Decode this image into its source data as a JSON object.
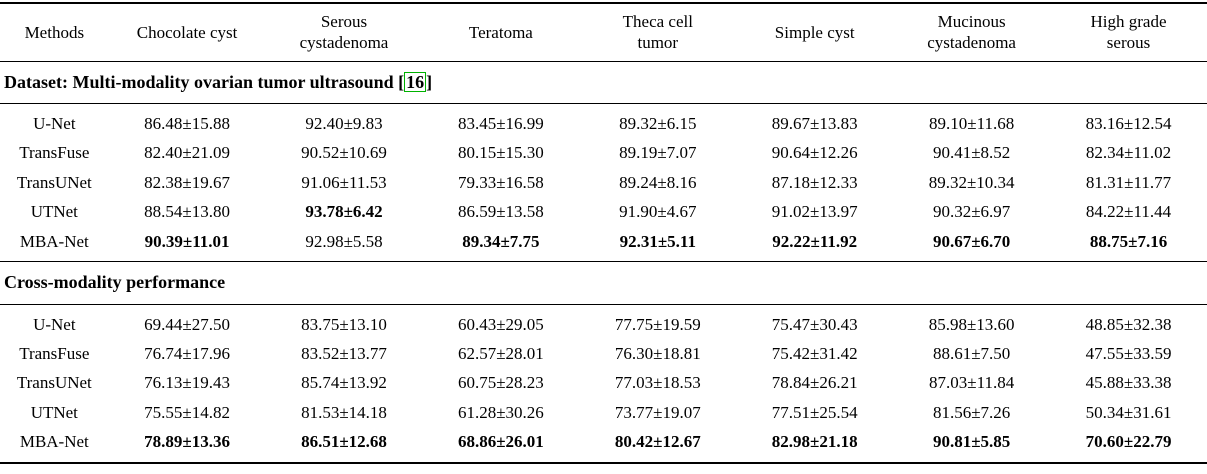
{
  "accent_colors": {
    "citation_border": "#00b200"
  },
  "table": {
    "columns": [
      "Methods",
      "Chocolate cyst",
      "Serous\ncystadenoma",
      "Teratoma",
      "Theca cell\ntumor",
      "Simple cyst",
      "Mucinous\ncystadenoma",
      "High grade\nserous"
    ],
    "sections": [
      {
        "title": "Dataset: Multi-modality ovarian tumor ultrasound",
        "citation_open": "[",
        "citation": "16",
        "citation_close": "]",
        "rows": [
          {
            "method": "U-Net",
            "values": [
              "86.48±15.88",
              "92.40±9.83",
              "83.45±16.99",
              "89.32±6.15",
              "89.67±13.83",
              "89.10±11.68",
              "83.16±12.54"
            ],
            "bold": [
              false,
              false,
              false,
              false,
              false,
              false,
              false
            ]
          },
          {
            "method": "TransFuse",
            "values": [
              "82.40±21.09",
              "90.52±10.69",
              "80.15±15.30",
              "89.19±7.07",
              "90.64±12.26",
              "90.41±8.52",
              "82.34±11.02"
            ],
            "bold": [
              false,
              false,
              false,
              false,
              false,
              false,
              false
            ]
          },
          {
            "method": "TransUNet",
            "values": [
              "82.38±19.67",
              "91.06±11.53",
              "79.33±16.58",
              "89.24±8.16",
              "87.18±12.33",
              "89.32±10.34",
              "81.31±11.77"
            ],
            "bold": [
              false,
              false,
              false,
              false,
              false,
              false,
              false
            ]
          },
          {
            "method": "UTNet",
            "values": [
              "88.54±13.80",
              "93.78±6.42",
              "86.59±13.58",
              "91.90±4.67",
              "91.02±13.97",
              "90.32±6.97",
              "84.22±11.44"
            ],
            "bold": [
              false,
              true,
              false,
              false,
              false,
              false,
              false
            ]
          },
          {
            "method": "MBA-Net",
            "values": [
              "90.39±11.01",
              "92.98±5.58",
              "89.34±7.75",
              "92.31±5.11",
              "92.22±11.92",
              "90.67±6.70",
              "88.75±7.16"
            ],
            "bold": [
              true,
              false,
              true,
              true,
              true,
              true,
              true
            ]
          }
        ]
      },
      {
        "title": "Cross-modality performance",
        "citation_open": "",
        "citation": "",
        "citation_close": "",
        "rows": [
          {
            "method": "U-Net",
            "values": [
              "69.44±27.50",
              "83.75±13.10",
              "60.43±29.05",
              "77.75±19.59",
              "75.47±30.43",
              "85.98±13.60",
              "48.85±32.38"
            ],
            "bold": [
              false,
              false,
              false,
              false,
              false,
              false,
              false
            ]
          },
          {
            "method": "TransFuse",
            "values": [
              "76.74±17.96",
              "83.52±13.77",
              "62.57±28.01",
              "76.30±18.81",
              "75.42±31.42",
              "88.61±7.50",
              "47.55±33.59"
            ],
            "bold": [
              false,
              false,
              false,
              false,
              false,
              false,
              false
            ]
          },
          {
            "method": "TransUNet",
            "values": [
              "76.13±19.43",
              "85.74±13.92",
              "60.75±28.23",
              "77.03±18.53",
              "78.84±26.21",
              "87.03±11.84",
              "45.88±33.38"
            ],
            "bold": [
              false,
              false,
              false,
              false,
              false,
              false,
              false
            ]
          },
          {
            "method": "UTNet",
            "values": [
              "75.55±14.82",
              "81.53±14.18",
              "61.28±30.26",
              "73.77±19.07",
              "77.51±25.54",
              "81.56±7.26",
              "50.34±31.61"
            ],
            "bold": [
              false,
              false,
              false,
              false,
              false,
              false,
              false
            ]
          },
          {
            "method": "MBA-Net",
            "values": [
              "78.89±13.36",
              "86.51±12.68",
              "68.86±26.01",
              "80.42±12.67",
              "82.98±21.18",
              "90.81±5.85",
              "70.60±22.79"
            ],
            "bold": [
              true,
              true,
              true,
              true,
              true,
              true,
              true
            ]
          }
        ]
      }
    ]
  }
}
